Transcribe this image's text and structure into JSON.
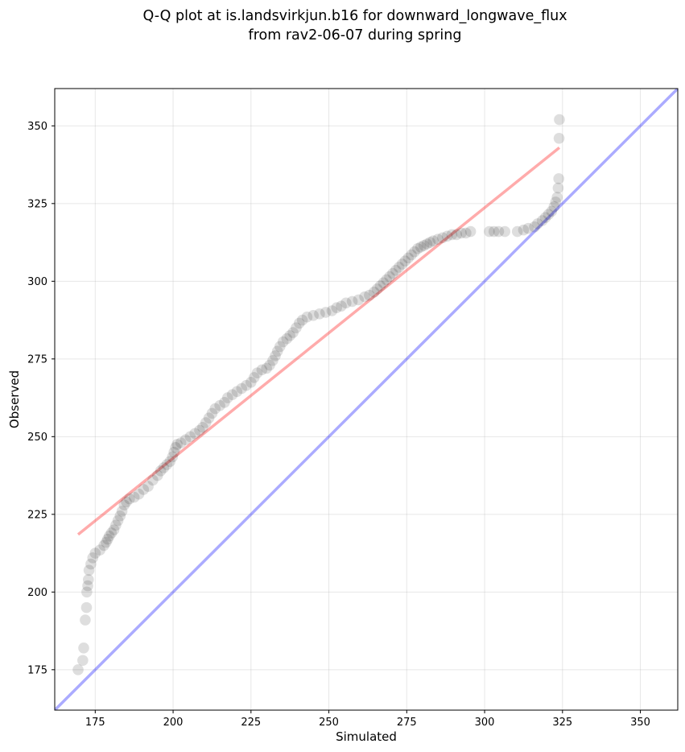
{
  "chart_data": {
    "type": "scatter",
    "title_lines": [
      "Q-Q plot at is.landsvirkjun.b16 for downward_longwave_flux",
      "from rav2-06-07 during spring"
    ],
    "xlabel": "Simulated",
    "ylabel": "Observed",
    "xlim": [
      162,
      362
    ],
    "ylim": [
      162,
      362
    ],
    "xticks": [
      175,
      200,
      225,
      250,
      275,
      300,
      325,
      350
    ],
    "yticks": [
      175,
      200,
      225,
      250,
      275,
      300,
      325,
      350
    ],
    "grid": true,
    "reference_line": {
      "x": [
        162,
        362
      ],
      "y": [
        162,
        362
      ],
      "color": "#0000ff"
    },
    "fit_line": {
      "x": [
        169.5,
        324
      ],
      "y": [
        218.5,
        343
      ],
      "color": "#ff0000"
    },
    "point_color": "#000000",
    "points": [
      [
        169.5,
        175
      ],
      [
        171.0,
        178
      ],
      [
        171.3,
        182
      ],
      [
        171.8,
        191
      ],
      [
        172.2,
        195
      ],
      [
        172.3,
        200
      ],
      [
        172.6,
        202
      ],
      [
        172.8,
        204
      ],
      [
        173.0,
        207
      ],
      [
        173.6,
        209
      ],
      [
        174.2,
        211
      ],
      [
        175.0,
        212.5
      ],
      [
        176.5,
        213.5
      ],
      [
        177.8,
        215
      ],
      [
        178.5,
        216
      ],
      [
        179.0,
        217
      ],
      [
        179.5,
        218
      ],
      [
        180.2,
        219
      ],
      [
        181.0,
        220
      ],
      [
        181.6,
        221.5
      ],
      [
        182.3,
        223
      ],
      [
        183.0,
        224.5
      ],
      [
        183.6,
        226
      ],
      [
        184.3,
        228
      ],
      [
        185.0,
        229
      ],
      [
        186.0,
        230
      ],
      [
        187.5,
        230.5
      ],
      [
        189.0,
        231.5
      ],
      [
        190.5,
        233
      ],
      [
        192.0,
        234
      ],
      [
        193.5,
        236
      ],
      [
        195.0,
        237.5
      ],
      [
        196.0,
        239
      ],
      [
        197.0,
        240
      ],
      [
        198.0,
        241
      ],
      [
        199.0,
        242
      ],
      [
        199.8,
        243.5
      ],
      [
        200.3,
        245
      ],
      [
        200.8,
        246.5
      ],
      [
        201.3,
        247.5
      ],
      [
        202.5,
        248
      ],
      [
        204.0,
        249
      ],
      [
        205.5,
        250
      ],
      [
        207.0,
        251
      ],
      [
        208.5,
        252
      ],
      [
        209.5,
        253
      ],
      [
        210.5,
        254.5
      ],
      [
        211.5,
        256
      ],
      [
        212.5,
        257.5
      ],
      [
        213.5,
        259
      ],
      [
        215.0,
        260
      ],
      [
        216.5,
        261
      ],
      [
        217.5,
        262.5
      ],
      [
        219.0,
        263.5
      ],
      [
        220.5,
        264.5
      ],
      [
        222.0,
        265.5
      ],
      [
        223.5,
        266.5
      ],
      [
        225.0,
        267.5
      ],
      [
        226.0,
        269
      ],
      [
        227.0,
        270.5
      ],
      [
        228.5,
        271.5
      ],
      [
        230.0,
        272
      ],
      [
        231.0,
        273
      ],
      [
        232.0,
        274.5
      ],
      [
        232.8,
        276
      ],
      [
        233.5,
        277.5
      ],
      [
        234.3,
        279
      ],
      [
        235.3,
        280.5
      ],
      [
        236.5,
        281.5
      ],
      [
        237.5,
        282.5
      ],
      [
        238.5,
        283.5
      ],
      [
        239.5,
        285
      ],
      [
        240.5,
        286.5
      ],
      [
        241.5,
        287.5
      ],
      [
        243.0,
        288.5
      ],
      [
        245.0,
        289
      ],
      [
        247.0,
        289.5
      ],
      [
        249.0,
        290
      ],
      [
        251.0,
        290.5
      ],
      [
        252.5,
        291.5
      ],
      [
        254.0,
        292
      ],
      [
        255.5,
        293
      ],
      [
        257.5,
        293.5
      ],
      [
        259.5,
        294
      ],
      [
        261.5,
        295
      ],
      [
        263.0,
        295.5
      ],
      [
        264.5,
        296.5
      ],
      [
        265.5,
        297.5
      ],
      [
        266.5,
        298.5
      ],
      [
        267.5,
        299.5
      ],
      [
        268.5,
        300.5
      ],
      [
        269.5,
        301.5
      ],
      [
        270.5,
        302.5
      ],
      [
        271.5,
        303.5
      ],
      [
        272.5,
        304.5
      ],
      [
        273.5,
        305.5
      ],
      [
        274.5,
        306.5
      ],
      [
        275.5,
        307.5
      ],
      [
        276.5,
        308.5
      ],
      [
        277.5,
        309.5
      ],
      [
        278.5,
        310.5
      ],
      [
        279.5,
        311
      ],
      [
        280.5,
        311.5
      ],
      [
        281.5,
        312
      ],
      [
        282.5,
        312.5
      ],
      [
        283.5,
        313
      ],
      [
        285.0,
        313.5
      ],
      [
        286.5,
        314
      ],
      [
        288.0,
        314.5
      ],
      [
        289.5,
        315
      ],
      [
        291.0,
        315
      ],
      [
        292.5,
        315.5
      ],
      [
        294.0,
        315.5
      ],
      [
        295.5,
        316
      ],
      [
        301.5,
        316
      ],
      [
        303.0,
        316
      ],
      [
        304.5,
        316
      ],
      [
        306.5,
        316
      ],
      [
        310.5,
        316
      ],
      [
        312.5,
        316.5
      ],
      [
        314.0,
        317
      ],
      [
        316.0,
        317.5
      ],
      [
        317.0,
        318.5
      ],
      [
        318.5,
        319.5
      ],
      [
        319.5,
        320.5
      ],
      [
        320.5,
        321.5
      ],
      [
        321.5,
        322.5
      ],
      [
        322.3,
        324
      ],
      [
        322.8,
        325.5
      ],
      [
        323.3,
        327
      ],
      [
        323.6,
        330
      ],
      [
        323.8,
        333
      ],
      [
        323.9,
        346
      ],
      [
        324.0,
        352
      ]
    ]
  }
}
